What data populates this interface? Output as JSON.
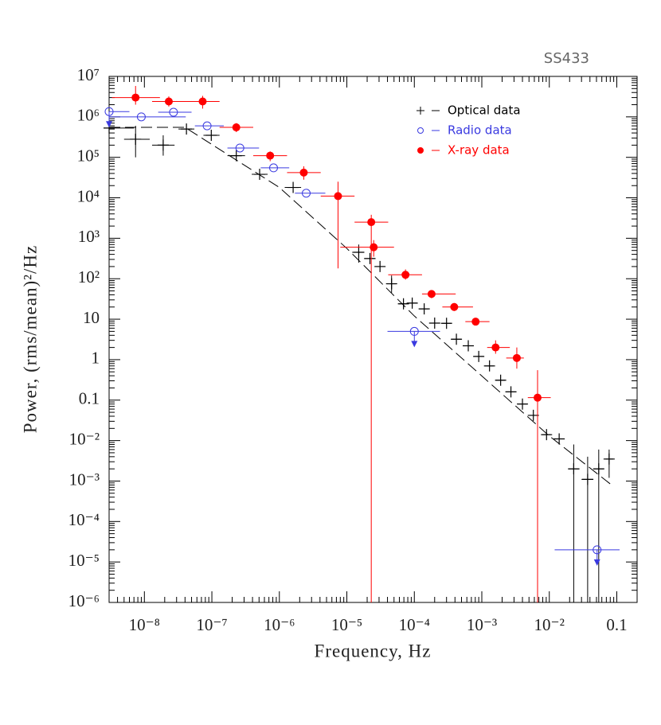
{
  "chart_data": {
    "type": "scatter",
    "title": "SS433",
    "x_label": "Frequency, Hz",
    "y_label": "Power, (rms/mean)²/Hz",
    "x_log": true,
    "y_log": true,
    "xlim": [
      3e-09,
      0.2
    ],
    "ylim": [
      1e-06,
      10000000.0
    ],
    "xticks": [
      {
        "value": 1e-08,
        "label": "10⁻⁸"
      },
      {
        "value": 1e-07,
        "label": "10⁻⁷"
      },
      {
        "value": 1e-06,
        "label": "10⁻⁶"
      },
      {
        "value": 1e-05,
        "label": "10⁻⁵"
      },
      {
        "value": 0.0001,
        "label": "10⁻⁴"
      },
      {
        "value": 0.001,
        "label": "10⁻³"
      },
      {
        "value": 0.01,
        "label": "10⁻²"
      },
      0.1
    ],
    "yticks": [
      {
        "value": 1e-06,
        "label": "10⁻⁶"
      },
      {
        "value": 1e-05,
        "label": "10⁻⁵"
      },
      {
        "value": 0.0001,
        "label": "10⁻⁴"
      },
      {
        "value": 0.001,
        "label": "10⁻³"
      },
      {
        "value": 0.01,
        "label": "10⁻²"
      },
      0.1,
      1,
      10,
      {
        "value": 100,
        "label": "10²"
      },
      {
        "value": 1000,
        "label": "10³"
      },
      {
        "value": 10000,
        "label": "10⁴"
      },
      {
        "value": 100000,
        "label": "10⁵"
      },
      {
        "value": 1000000,
        "label": "10⁶"
      },
      {
        "value": 10000000,
        "label": "10⁷"
      }
    ],
    "legend": "upper right",
    "series": [
      {
        "name": "Optical data",
        "color": "#000000",
        "marker": "plus",
        "x": [
          3e-09,
          7.4e-09,
          1.9e-08,
          4.2e-08,
          9.8e-08,
          2.3e-07,
          5.1e-07,
          1.6e-06,
          1.5e-05,
          2.2e-05,
          3.1e-05,
          4.6e-05,
          6.9e-05,
          9.3e-05,
          0.00014,
          0.0002,
          0.0003,
          0.00042,
          0.00063,
          0.0009,
          0.0013,
          0.0019,
          0.0027,
          0.004,
          0.0058,
          0.0091,
          0.014,
          0.023,
          0.037,
          0.054,
          0.077
        ],
        "values": [
          530000,
          280000,
          200000,
          500000,
          350000,
          110000,
          38000,
          18000,
          450,
          315,
          200,
          75,
          24,
          25,
          18,
          8,
          7.9,
          3.2,
          2.2,
          1.2,
          0.7,
          0.31,
          0.16,
          0.08,
          0.042,
          0.014,
          0.011,
          0.002,
          0.0011,
          0.002,
          0.0035
        ],
        "x_min": [
          3e-09,
          5e-09,
          1.3e-08,
          3.2e-08,
          7.5e-08,
          1.7e-07,
          3.9e-07,
          1.2e-06,
          1.2e-05,
          1.8e-05,
          2.6e-05,
          3.9e-05,
          5.9e-05,
          8e-05,
          0.00012,
          0.00017,
          0.00026,
          0.00036,
          0.00054,
          0.00077,
          0.0011,
          0.0016,
          0.0023,
          0.0034,
          0.005,
          0.0078,
          0.012,
          0.019,
          0.03,
          0.045,
          0.068
        ],
        "x_max": [
          7e-09,
          1.2e-08,
          2.8e-08,
          5.5e-08,
          1.3e-07,
          3.1e-07,
          6.7e-07,
          2.1e-06,
          1.8e-05,
          2.6e-05,
          3.7e-05,
          5.4e-05,
          8e-05,
          0.00011,
          0.00016,
          0.00024,
          0.00035,
          0.0005,
          0.00074,
          0.00105,
          0.0015,
          0.0022,
          0.0032,
          0.0047,
          0.0068,
          0.0105,
          0.016,
          0.028,
          0.045,
          0.063,
          0.088
        ],
        "y_min": [
          null,
          100000,
          110000,
          null,
          null,
          null,
          null,
          null,
          250,
          null,
          null,
          45,
          null,
          null,
          null,
          null,
          null,
          null,
          null,
          null,
          null,
          null,
          null,
          null,
          null,
          null,
          null,
          1e-06,
          1e-06,
          1e-06,
          0.0012
        ],
        "y_max": [
          null,
          600000,
          350000,
          null,
          null,
          null,
          null,
          null,
          700,
          null,
          null,
          120,
          null,
          null,
          null,
          null,
          null,
          null,
          null,
          null,
          null,
          null,
          null,
          null,
          null,
          null,
          null,
          0.008,
          0.004,
          0.006,
          0.006
        ]
      },
      {
        "name": "Radio data",
        "color": "#3a3ae0",
        "marker": "open-circle",
        "x": [
          3e-09,
          9e-09,
          2.7e-08,
          8.5e-08,
          2.6e-07,
          8.2e-07,
          2.5e-06,
          0.0001,
          0.051
        ],
        "values": [
          1350000,
          1000000,
          1300000,
          600000,
          170000,
          55000,
          13000,
          5,
          2e-05
        ],
        "x_min": [
          3e-09,
          3e-09,
          1.6e-08,
          5.6e-08,
          1.7e-07,
          5.3e-07,
          1.7e-06,
          4e-05,
          0.012
        ],
        "x_max": [
          6e-09,
          4.1e-08,
          5e-08,
          1.5e-07,
          5e-07,
          1.4e-06,
          4.8e-06,
          0.00024,
          0.11
        ],
        "upper_limit": [
          true,
          false,
          false,
          false,
          false,
          false,
          false,
          true,
          true
        ]
      },
      {
        "name": "X-ray data",
        "color": "#ff0000",
        "marker": "filled-circle",
        "x": [
          7.4e-09,
          2.3e-08,
          7.3e-08,
          2.3e-07,
          7.3e-07,
          2.3e-06,
          7.4e-06,
          2.3e-05,
          2.5e-05,
          7.4e-05,
          0.00018,
          0.00039,
          0.00081,
          0.0016,
          0.0033,
          0.0067
        ],
        "values": [
          3000000,
          2400000,
          2400000,
          550000,
          110000,
          42000,
          11000,
          2500,
          600,
          125,
          42,
          20,
          8.7,
          2,
          1.1,
          0.115
        ],
        "x_min": [
          3.3e-09,
          1.3e-08,
          4.3e-08,
          1.3e-07,
          4.1e-07,
          1.3e-06,
          4.1e-06,
          1.3e-05,
          8e-06,
          4.1e-05,
          0.00013,
          0.00026,
          0.00057,
          0.0012,
          0.0023,
          0.0048
        ],
        "x_max": [
          1.7e-08,
          4.3e-08,
          1.3e-07,
          4.1e-07,
          1.3e-06,
          4.1e-06,
          1.3e-05,
          4.1e-05,
          5e-05,
          0.00013,
          0.00041,
          0.00074,
          0.0013,
          0.0026,
          0.0042,
          0.0105
        ],
        "y_min": [
          2000000,
          1800000,
          1600000,
          420000,
          80000,
          28000,
          180,
          1e-06,
          350,
          95,
          33,
          16,
          7,
          1.4,
          0.6,
          1e-06
        ],
        "y_max": [
          5800000,
          3200000,
          3300000,
          700000,
          140000,
          60000,
          25000,
          3800,
          900,
          170,
          50,
          25,
          10,
          3,
          2,
          0.55
        ]
      }
    ],
    "model_line": {
      "x": [
        3e-09,
        4e-08,
        1e-06,
        1e-05,
        0.0001,
        0.01,
        0.08
      ],
      "values": [
        550000,
        550000,
        18000,
        560,
        12,
        0.013,
        0.00085
      ]
    }
  }
}
